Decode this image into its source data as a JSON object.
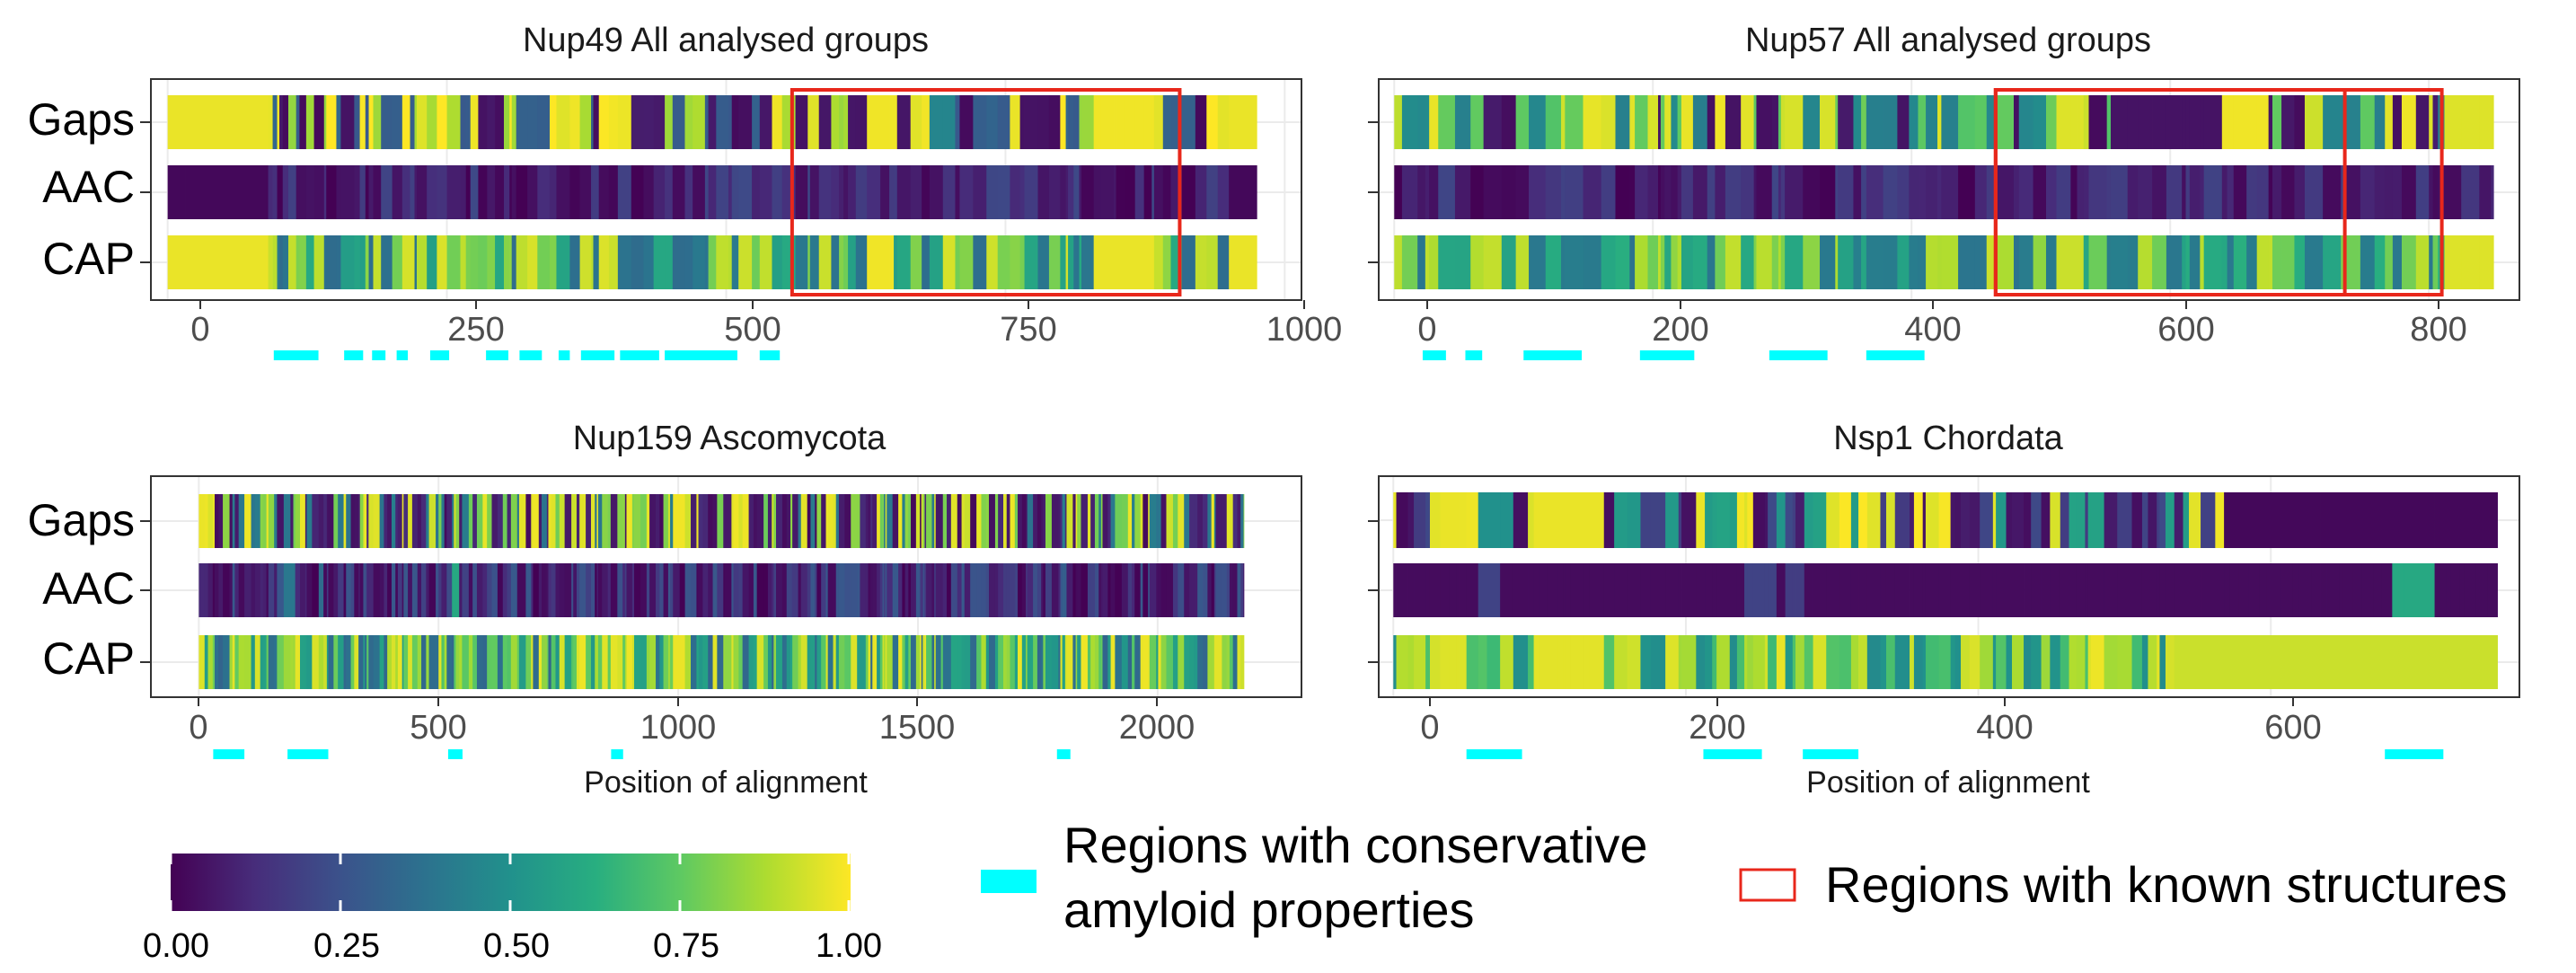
{
  "chart_data": [
    {
      "type": "heatmap",
      "title": "Nup49 All analysed groups",
      "xlabel": "",
      "xlim": [
        -15,
        1015
      ],
      "xticks": [
        0,
        250,
        500,
        750,
        1000
      ],
      "xtick_labels": [
        "0",
        "250",
        "500",
        "750",
        "1000"
      ],
      "tracks": [
        "Gaps",
        "AAC",
        "CAP"
      ],
      "alignment_length": 975,
      "flank_start": 90,
      "flank_end": 950,
      "seed": 1,
      "gap_levels": [
        0.98,
        0.05,
        0.3,
        0.85
      ],
      "cap_levels": [
        0.92,
        0.38,
        0.58,
        0.8
      ],
      "aac_levels": [
        0.02,
        0.06,
        0.12,
        0.2
      ],
      "seg_widths": [
        2,
        12
      ],
      "gap_overrides": [
        {
          "start": 560,
          "end": 570,
          "value": 0.05
        },
        {
          "start": 625,
          "end": 650,
          "value": 0.98
        },
        {
          "start": 685,
          "end": 700,
          "value": 0.45
        },
        {
          "start": 830,
          "end": 885,
          "value": 0.98
        }
      ],
      "cap_overrides": [
        {
          "start": 625,
          "end": 650,
          "value": 0.98
        },
        {
          "start": 830,
          "end": 885,
          "value": 0.97
        }
      ],
      "aac_overrides": [],
      "amyloid_regions": [
        [
          95,
          135
        ],
        [
          158,
          175
        ],
        [
          183,
          195
        ],
        [
          205,
          215
        ],
        [
          235,
          252
        ],
        [
          285,
          305
        ],
        [
          315,
          335
        ],
        [
          350,
          360
        ],
        [
          370,
          400
        ],
        [
          405,
          440
        ],
        [
          445,
          510
        ],
        [
          530,
          548
        ]
      ],
      "known_structures": [
        [
          559,
          906
        ]
      ]
    },
    {
      "type": "heatmap",
      "title": "Nup57 All analysed groups",
      "xlabel": "",
      "xlim": [
        -12,
        870
      ],
      "xticks": [
        0,
        200,
        400,
        600,
        800
      ],
      "xtick_labels": [
        "0",
        "200",
        "400",
        "600",
        "800"
      ],
      "tracks": [
        "Gaps",
        "AAC",
        "CAP"
      ],
      "alignment_length": 850,
      "flank_start": 0,
      "flank_end": 850,
      "seed": 2,
      "gap_levels": [
        0.95,
        0.05,
        0.45,
        0.75
      ],
      "cap_levels": [
        0.9,
        0.4,
        0.6,
        0.8
      ],
      "aac_levels": [
        0.02,
        0.05,
        0.1,
        0.18
      ],
      "seg_widths": [
        2,
        14
      ],
      "gap_overrides": [
        {
          "start": 0,
          "end": 10,
          "value": 0.9
        },
        {
          "start": 510,
          "end": 535,
          "value": 0.95
        },
        {
          "start": 560,
          "end": 640,
          "value": 0.05
        },
        {
          "start": 640,
          "end": 675,
          "value": 0.98
        },
        {
          "start": 815,
          "end": 850,
          "value": 0.95
        }
      ],
      "cap_overrides": [
        {
          "start": 0,
          "end": 10,
          "value": 0.9
        },
        {
          "start": 510,
          "end": 535,
          "value": 0.92
        },
        {
          "start": 815,
          "end": 850,
          "value": 0.95
        }
      ],
      "aac_overrides": [],
      "amyloid_regions": [
        [
          22,
          40
        ],
        [
          55,
          68
        ],
        [
          100,
          145
        ],
        [
          190,
          232
        ],
        [
          290,
          335
        ],
        [
          365,
          410
        ]
      ],
      "known_structures": [
        [
          465,
          735
        ],
        [
          465,
          810
        ]
      ]
    },
    {
      "type": "heatmap",
      "title": "Nup159 Ascomycota",
      "xlabel": "Position of alignment",
      "xlim": [
        -100,
        2300
      ],
      "xticks": [
        0,
        500,
        1000,
        1500,
        2000
      ],
      "xtick_labels": [
        "0",
        "500",
        "1000",
        "1500",
        "2000"
      ],
      "tracks": [
        "Gaps",
        "AAC",
        "CAP"
      ],
      "alignment_length": 2180,
      "flank_start": 0,
      "flank_end": 2180,
      "seed": 3,
      "gap_levels": [
        0.95,
        0.05,
        0.1,
        0.4,
        0.8
      ],
      "cap_levels": [
        0.95,
        0.35,
        0.55,
        0.75,
        0.85
      ],
      "aac_levels": [
        0.02,
        0.05,
        0.1,
        0.18,
        0.25
      ],
      "seg_widths": [
        3,
        14
      ],
      "gap_overrides": [
        {
          "start": 0,
          "end": 15,
          "value": 0.97
        },
        {
          "start": 995,
          "end": 1015,
          "value": 0.98
        }
      ],
      "cap_overrides": [
        {
          "start": 0,
          "end": 15,
          "value": 0.95
        },
        {
          "start": 995,
          "end": 1015,
          "value": 0.97
        }
      ],
      "aac_overrides": [
        {
          "start": 180,
          "end": 200,
          "value": 0.4
        },
        {
          "start": 250,
          "end": 260,
          "value": 0.35
        },
        {
          "start": 525,
          "end": 540,
          "value": 0.6
        },
        {
          "start": 1800,
          "end": 1810,
          "value": 0.3
        }
      ],
      "amyloid_regions": [
        [
          30,
          95
        ],
        [
          185,
          270
        ],
        [
          520,
          550
        ],
        [
          860,
          885
        ],
        [
          1790,
          1818
        ]
      ],
      "known_structures": []
    },
    {
      "type": "heatmap",
      "title": "Nsp1 Chordata",
      "xlabel": "Position of alignment",
      "xlim": [
        -10,
        770
      ],
      "xticks": [
        0,
        200,
        400,
        600
      ],
      "xtick_labels": [
        "0",
        "200",
        "400",
        "600"
      ],
      "tracks": [
        "Gaps",
        "AAC",
        "CAP"
      ],
      "alignment_length": 755,
      "flank_start": 0,
      "flank_end": 755,
      "seed": 4,
      "gap_levels": [
        0.97,
        0.05,
        0.2,
        0.55
      ],
      "cap_levels": [
        0.95,
        0.5,
        0.7,
        0.88
      ],
      "aac_levels": [
        0.02,
        0.05,
        0.12,
        0.2
      ],
      "seg_widths": [
        2,
        10
      ],
      "gap_overrides": [
        {
          "start": 30,
          "end": 52,
          "value": 0.97
        },
        {
          "start": 58,
          "end": 85,
          "value": 0.5
        },
        {
          "start": 97,
          "end": 140,
          "value": 0.97
        },
        {
          "start": 570,
          "end": 755,
          "value": 0.02
        }
      ],
      "cap_overrides": [
        {
          "start": 35,
          "end": 50,
          "value": 0.95
        },
        {
          "start": 97,
          "end": 140,
          "value": 0.96
        },
        {
          "start": 185,
          "end": 195,
          "value": 0.95
        },
        {
          "start": 535,
          "end": 755,
          "value": 0.92
        }
      ],
      "aac_overrides": [
        {
          "start": 0,
          "end": 755,
          "value": 0.03
        },
        {
          "start": 60,
          "end": 75,
          "value": 0.2
        },
        {
          "start": 240,
          "end": 260,
          "value": 0.2
        },
        {
          "start": 270,
          "end": 280,
          "value": 0.18
        },
        {
          "start": 680,
          "end": 715,
          "value": 0.6
        }
      ],
      "amyloid_regions": [
        [
          50,
          88
        ],
        [
          212,
          252
        ],
        [
          280,
          318
        ],
        [
          678,
          718
        ]
      ],
      "known_structures": []
    }
  ],
  "colorbar": {
    "ticks": [
      0.0,
      0.25,
      0.5,
      0.75,
      1.0
    ],
    "labels": [
      "0.00",
      "0.25",
      "0.50",
      "0.75",
      "1.00"
    ]
  },
  "legend": {
    "amyloid_label_line1": "Regions with conservative",
    "amyloid_label_line2": "amyloid properties",
    "structure_label": "Regions with known structures",
    "amyloid_color": "#00FFFF",
    "structure_color": "#E8271B"
  }
}
